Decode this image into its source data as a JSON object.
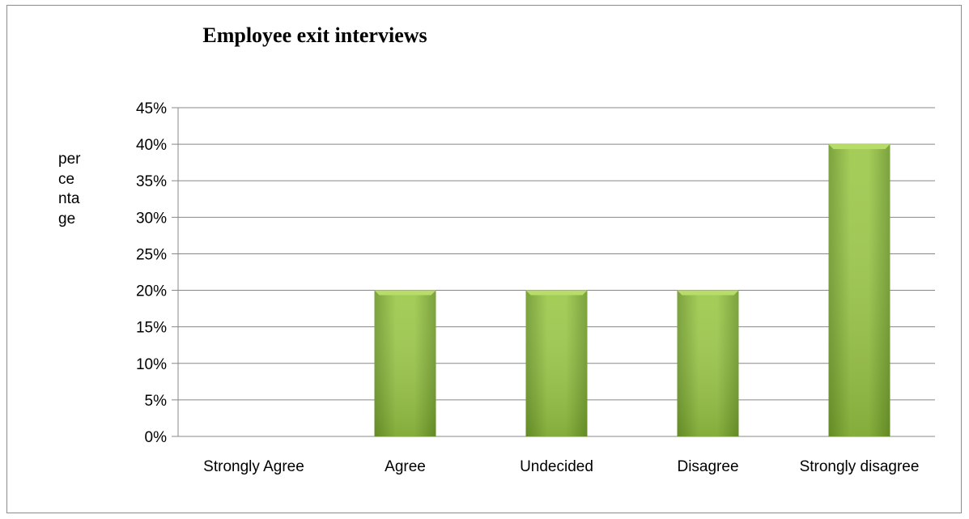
{
  "chart_data": {
    "type": "bar",
    "title": "Employee exit interviews",
    "ylabel_lines": [
      "per",
      "ce",
      "nta",
      "ge"
    ],
    "categories": [
      "Strongly Agree",
      "Agree",
      "Undecided",
      "Disagree",
      "Strongly disagree"
    ],
    "values": [
      0,
      20,
      20,
      20,
      40
    ],
    "yticks": [
      "0%",
      "5%",
      "10%",
      "15%",
      "20%",
      "25%",
      "30%",
      "35%",
      "40%",
      "45%"
    ],
    "ylim": [
      0,
      45
    ],
    "grid": true,
    "legend": "none",
    "bar_color": "#8fbc3a"
  }
}
